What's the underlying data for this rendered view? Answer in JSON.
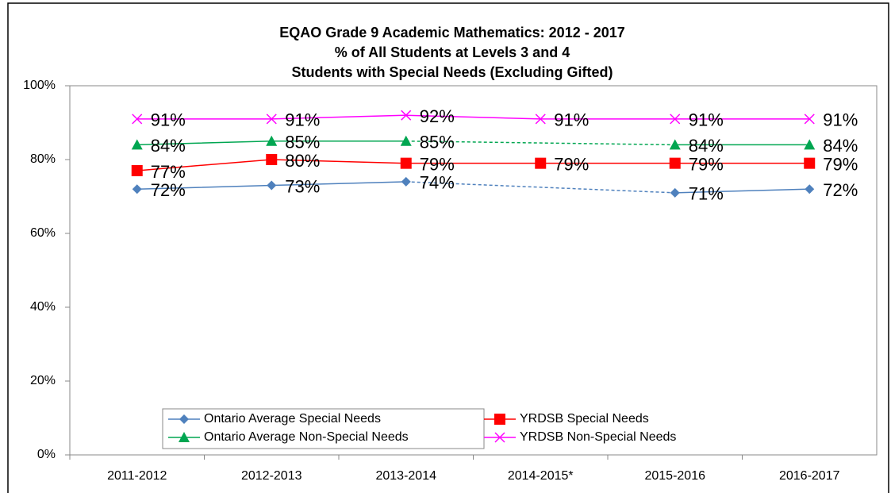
{
  "chart_data": {
    "type": "line",
    "title": [
      "EQAO Grade 9 Academic Mathematics: 2012 - 2017",
      "% of All Students at Levels 3 and 4",
      "Students with Special Needs (Excluding Gifted)"
    ],
    "categories": [
      "2011-2012",
      "2012-2013",
      "2013-2014",
      "2014-2015*",
      "2015-2016",
      "2016-2017"
    ],
    "series": [
      {
        "name": "Ontario Average Special Needs",
        "color": "#4f81bd",
        "marker": "diamond",
        "values": [
          72,
          73,
          74,
          null,
          71,
          72
        ],
        "value_labels": [
          "72%",
          "73%",
          "74%",
          null,
          "71%",
          "72%"
        ]
      },
      {
        "name": "YRDSB Special Needs",
        "color": "#ff0000",
        "marker": "square",
        "values": [
          77,
          80,
          79,
          79,
          79,
          79
        ],
        "value_labels": [
          "77%",
          "80%",
          "79%",
          "79%",
          "79%",
          "79%"
        ]
      },
      {
        "name": "Ontario Average Non-Special Needs",
        "color": "#00a651",
        "marker": "triangle",
        "values": [
          84,
          85,
          85,
          null,
          84,
          84
        ],
        "value_labels": [
          "84%",
          "85%",
          "85%",
          null,
          "84%",
          "84%"
        ]
      },
      {
        "name": "YRDSB Non-Special Needs",
        "color": "#ff00ff",
        "marker": "x",
        "values": [
          91,
          91,
          92,
          91,
          91,
          91
        ],
        "value_labels": [
          "91%",
          "91%",
          "92%",
          "91%",
          "91%",
          "91%"
        ]
      }
    ],
    "gap_line": "dashed",
    "ylim": [
      0,
      100
    ],
    "yticks": [
      {
        "value": 0,
        "label": "0%"
      },
      {
        "value": 20,
        "label": "20%"
      },
      {
        "value": 40,
        "label": "40%"
      },
      {
        "value": 60,
        "label": "60%"
      },
      {
        "value": 80,
        "label": "80%"
      },
      {
        "value": 100,
        "label": "100%"
      }
    ],
    "legend": "bottom-left"
  }
}
